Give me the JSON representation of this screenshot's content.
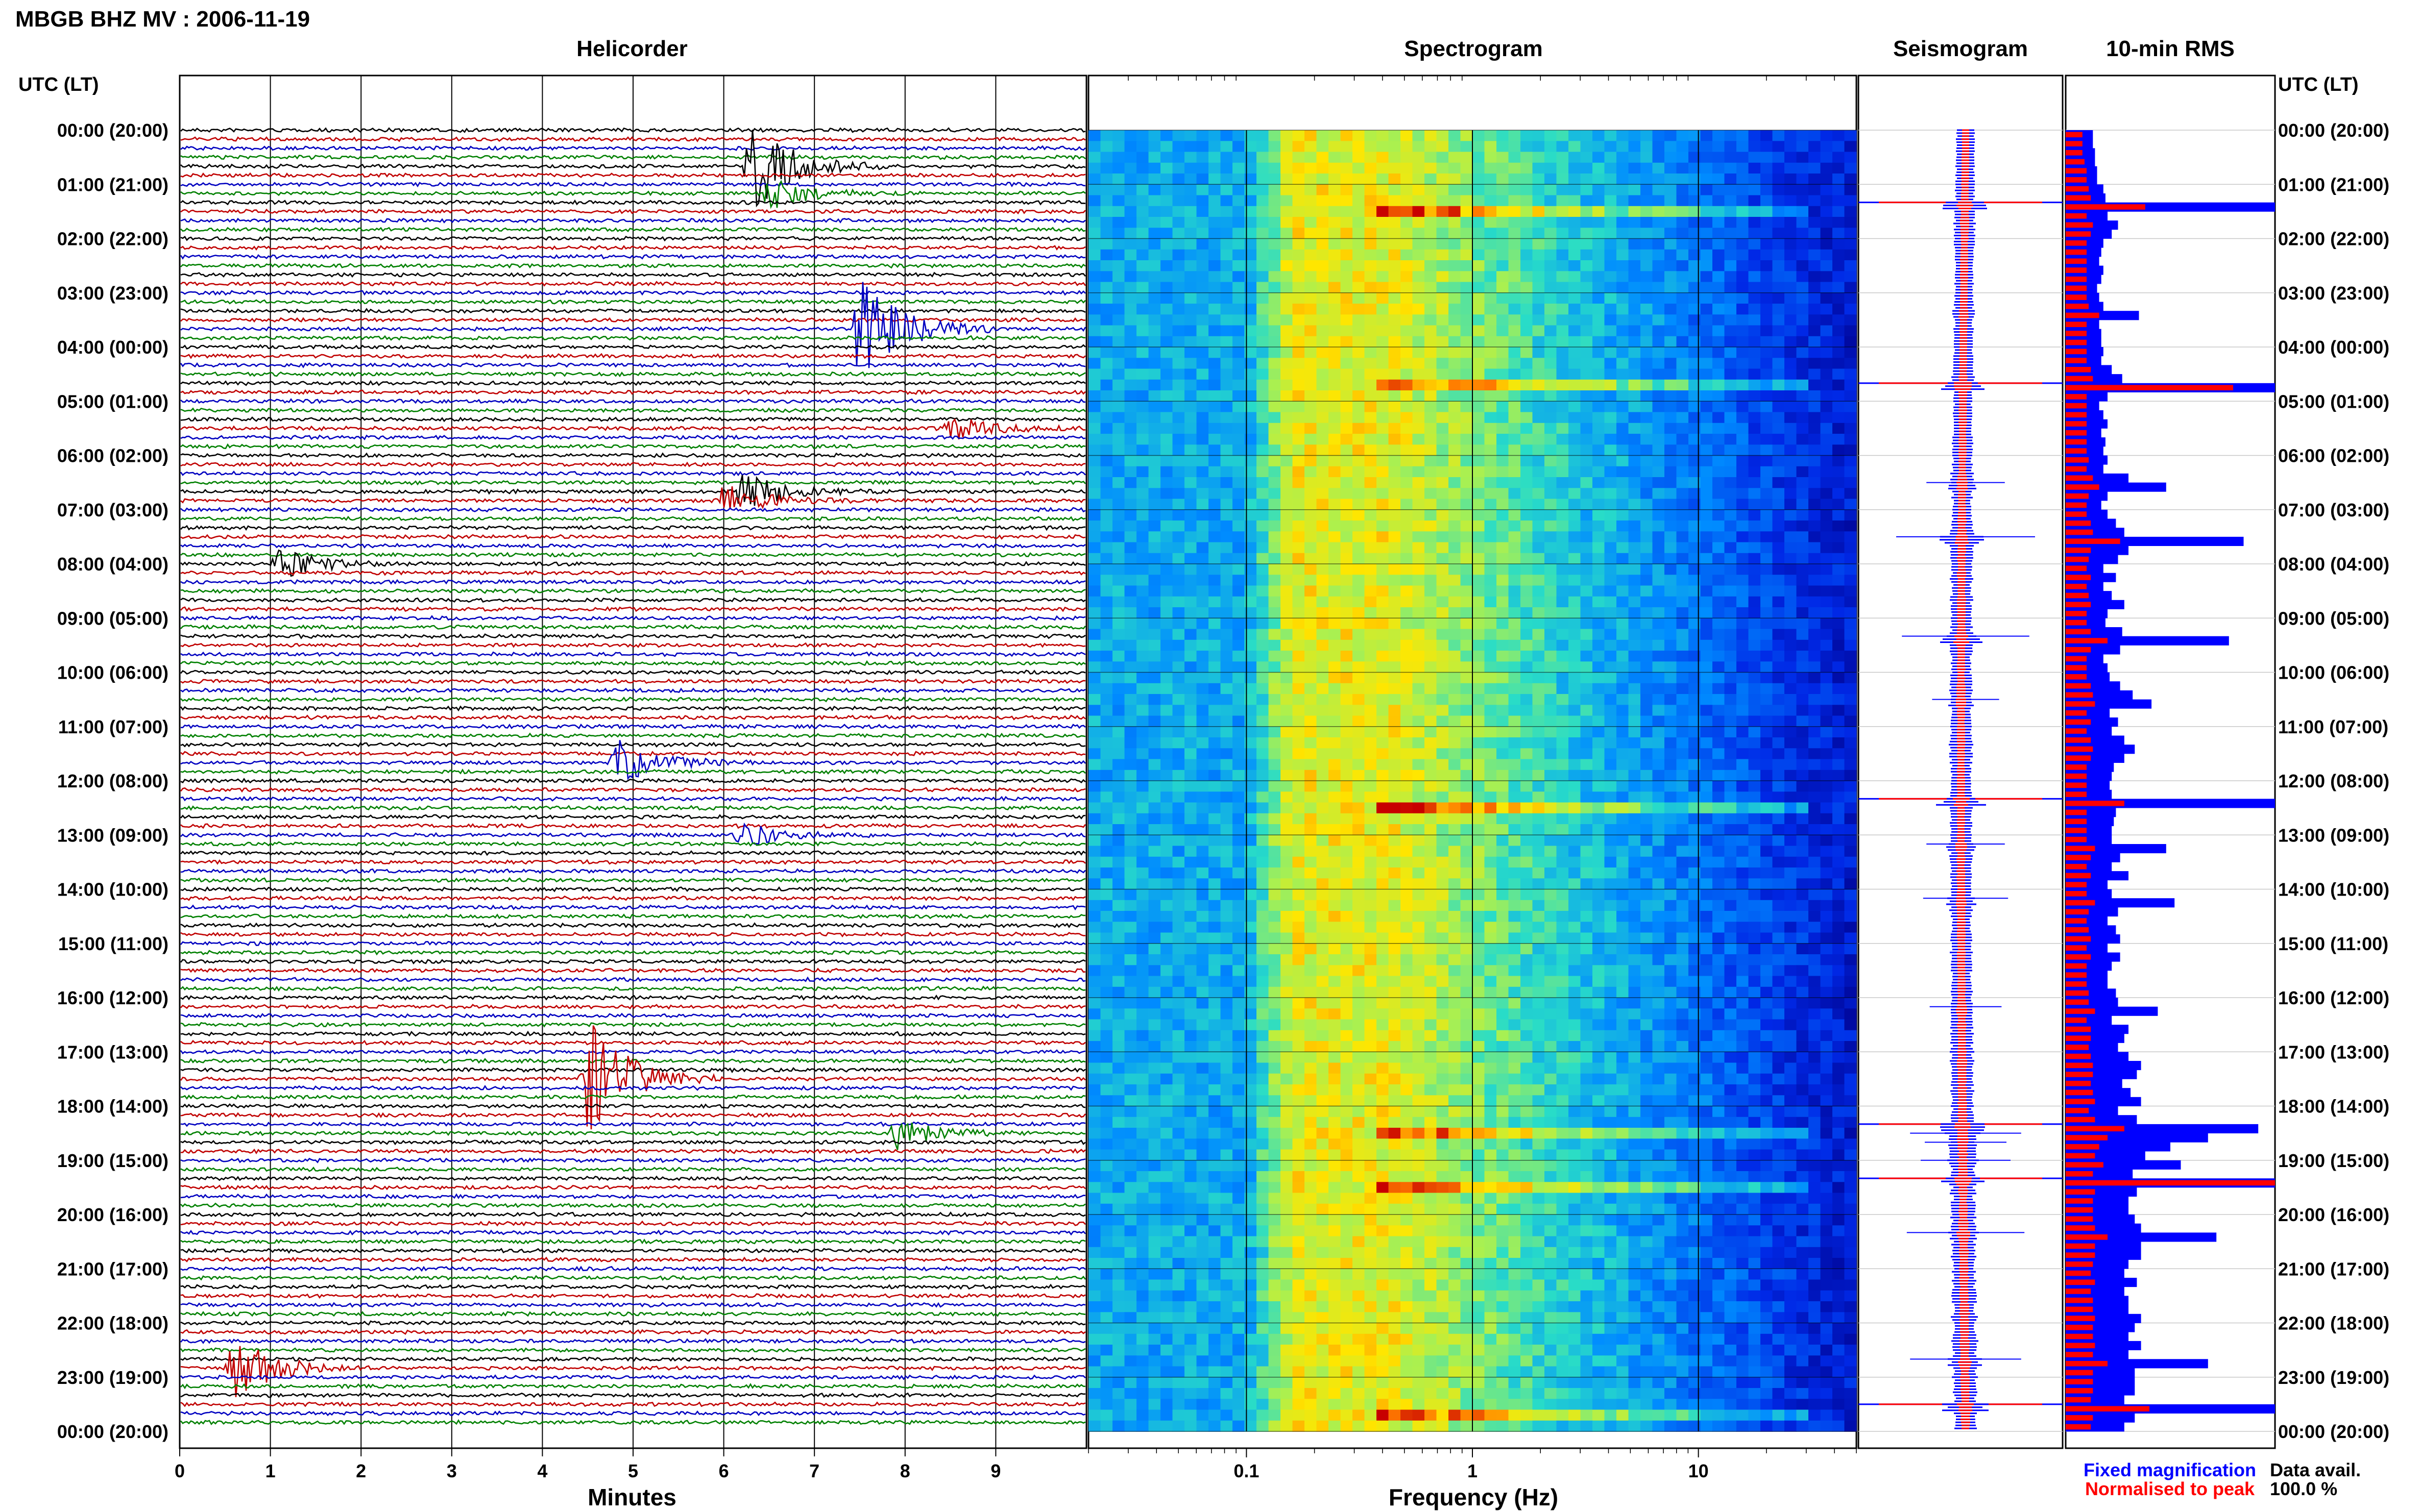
{
  "header": {
    "title": "MBGB BHZ MV : 2006-11-19",
    "utc_label_left": "UTC (LT)",
    "utc_label_right": "UTC (LT)"
  },
  "panels": {
    "helicorder": "Helicorder",
    "spectrogram": "Spectrogram",
    "seismogram": "Seismogram",
    "rms": "10-min RMS"
  },
  "time_labels": [
    "00:00 (20:00)",
    "01:00 (21:00)",
    "02:00 (22:00)",
    "03:00 (23:00)",
    "04:00 (00:00)",
    "05:00 (01:00)",
    "06:00 (02:00)",
    "07:00 (03:00)",
    "08:00 (04:00)",
    "09:00 (05:00)",
    "10:00 (06:00)",
    "11:00 (07:00)",
    "12:00 (08:00)",
    "13:00 (09:00)",
    "14:00 (10:00)",
    "15:00 (11:00)",
    "16:00 (12:00)",
    "17:00 (13:00)",
    "18:00 (14:00)",
    "19:00 (15:00)",
    "20:00 (16:00)",
    "21:00 (17:00)",
    "22:00 (18:00)",
    "23:00 (19:00)",
    "00:00 (20:00)"
  ],
  "axes": {
    "helicorder_xlabel": "Minutes",
    "helicorder_ticks": [
      "0",
      "1",
      "2",
      "3",
      "4",
      "5",
      "6",
      "7",
      "8",
      "9"
    ],
    "spectrogram_xlabel": "Frequency (Hz)",
    "spectrogram_ticks": [
      "0.1",
      "1",
      "10"
    ]
  },
  "legend": {
    "fixed": "Fixed magnification",
    "normalised": "Normalised to peak",
    "data_avail_label": "Data avail.",
    "data_avail_value": "100.0 %"
  },
  "colors": {
    "trace_cycle": [
      "#000000",
      "#c00000",
      "#0000c0",
      "#008000"
    ],
    "fixed": "#0000ff",
    "normalised": "#ff0000"
  },
  "chart_data": {
    "type": "heatmap",
    "station": "MBGB BHZ MV",
    "date": "2006-11-19",
    "helicorder": {
      "x_range_minutes": [
        0,
        10
      ],
      "lines_per_hour": 6,
      "events_utc": [
        {
          "time": "00:40",
          "minute": 6.3,
          "amp": 6
        },
        {
          "time": "01:10",
          "minute": 6.5,
          "amp": 2
        },
        {
          "time": "03:40",
          "minute": 7.5,
          "amp": 7
        },
        {
          "time": "05:30",
          "minute": 8.5,
          "amp": 1.5
        },
        {
          "time": "06:40",
          "minute": 6.2,
          "amp": 2.5
        },
        {
          "time": "06:50",
          "minute": 6.0,
          "amp": 2
        },
        {
          "time": "08:00",
          "minute": 1.1,
          "amp": 2
        },
        {
          "time": "11:40",
          "minute": 4.8,
          "amp": 3
        },
        {
          "time": "13:00",
          "minute": 6.2,
          "amp": 1.5
        },
        {
          "time": "17:30",
          "minute": 4.5,
          "amp": 8
        },
        {
          "time": "18:30",
          "minute": 7.9,
          "amp": 2
        },
        {
          "time": "22:50",
          "minute": 0.6,
          "amp": 4
        }
      ]
    },
    "spectrogram": {
      "x_scale": "log",
      "x_range_hz": [
        0.02,
        50
      ],
      "xticks": [
        0.1,
        1,
        10
      ]
    },
    "rms_10min_fixed": [
      0.13,
      0.13,
      0.14,
      0.14,
      0.15,
      0.15,
      0.18,
      0.19,
      1.0,
      0.2,
      0.25,
      0.22,
      0.18,
      0.17,
      0.16,
      0.18,
      0.17,
      0.15,
      0.16,
      0.18,
      0.35,
      0.16,
      0.17,
      0.17,
      0.18,
      0.17,
      0.22,
      0.27,
      1.0,
      0.2,
      0.16,
      0.18,
      0.2,
      0.17,
      0.19,
      0.18,
      0.2,
      0.18,
      0.3,
      0.48,
      0.2,
      0.17,
      0.2,
      0.24,
      0.28,
      0.85,
      0.3,
      0.25,
      0.18,
      0.24,
      0.18,
      0.22,
      0.28,
      0.2,
      0.19,
      0.27,
      0.78,
      0.26,
      0.18,
      0.2,
      0.21,
      0.26,
      0.32,
      0.41,
      0.21,
      0.25,
      0.22,
      0.28,
      0.33,
      0.28,
      0.23,
      0.22,
      0.21,
      0.22,
      1.0,
      0.24,
      0.23,
      0.22,
      0.22,
      0.48,
      0.26,
      0.22,
      0.3,
      0.2,
      0.22,
      0.52,
      0.25,
      0.2,
      0.24,
      0.26,
      0.2,
      0.26,
      0.22,
      0.2,
      0.2,
      0.24,
      0.25,
      0.44,
      0.22,
      0.3,
      0.28,
      0.25,
      0.3,
      0.36,
      0.34,
      0.27,
      0.31,
      0.36,
      0.25,
      0.34,
      0.92,
      0.68,
      0.5,
      0.38,
      0.55,
      0.32,
      1.0,
      0.34,
      0.3,
      0.3,
      0.33,
      0.36,
      0.72,
      0.36,
      0.36,
      0.3,
      0.28,
      0.34,
      0.28,
      0.3,
      0.3,
      0.36,
      0.33,
      0.3,
      0.36,
      0.3,
      0.68,
      0.33,
      0.33,
      0.33,
      0.28,
      1.0,
      0.33,
      0.28
    ],
    "rms_10min_normalised": [
      0.08,
      0.08,
      0.08,
      0.09,
      0.1,
      0.1,
      0.11,
      0.12,
      0.38,
      0.1,
      0.13,
      0.12,
      0.1,
      0.1,
      0.1,
      0.1,
      0.1,
      0.1,
      0.1,
      0.11,
      0.16,
      0.1,
      0.1,
      0.1,
      0.1,
      0.1,
      0.12,
      0.13,
      0.8,
      0.1,
      0.1,
      0.1,
      0.1,
      0.1,
      0.1,
      0.1,
      0.11,
      0.1,
      0.13,
      0.16,
      0.11,
      0.1,
      0.1,
      0.12,
      0.13,
      0.26,
      0.12,
      0.11,
      0.1,
      0.12,
      0.1,
      0.11,
      0.12,
      0.1,
      0.1,
      0.12,
      0.2,
      0.12,
      0.1,
      0.1,
      0.1,
      0.12,
      0.13,
      0.14,
      0.1,
      0.12,
      0.1,
      0.12,
      0.13,
      0.12,
      0.1,
      0.1,
      0.1,
      0.1,
      0.28,
      0.1,
      0.1,
      0.1,
      0.1,
      0.14,
      0.12,
      0.1,
      0.12,
      0.1,
      0.1,
      0.14,
      0.11,
      0.1,
      0.11,
      0.12,
      0.1,
      0.12,
      0.1,
      0.1,
      0.1,
      0.11,
      0.11,
      0.14,
      0.1,
      0.12,
      0.12,
      0.11,
      0.12,
      0.13,
      0.13,
      0.12,
      0.13,
      0.14,
      0.11,
      0.14,
      0.28,
      0.2,
      0.16,
      0.14,
      0.18,
      0.13,
      1.0,
      0.14,
      0.13,
      0.13,
      0.13,
      0.14,
      0.2,
      0.14,
      0.14,
      0.13,
      0.12,
      0.14,
      0.12,
      0.13,
      0.13,
      0.14,
      0.13,
      0.13,
      0.14,
      0.13,
      0.2,
      0.13,
      0.13,
      0.13,
      0.12,
      0.4,
      0.13,
      0.12
    ]
  }
}
